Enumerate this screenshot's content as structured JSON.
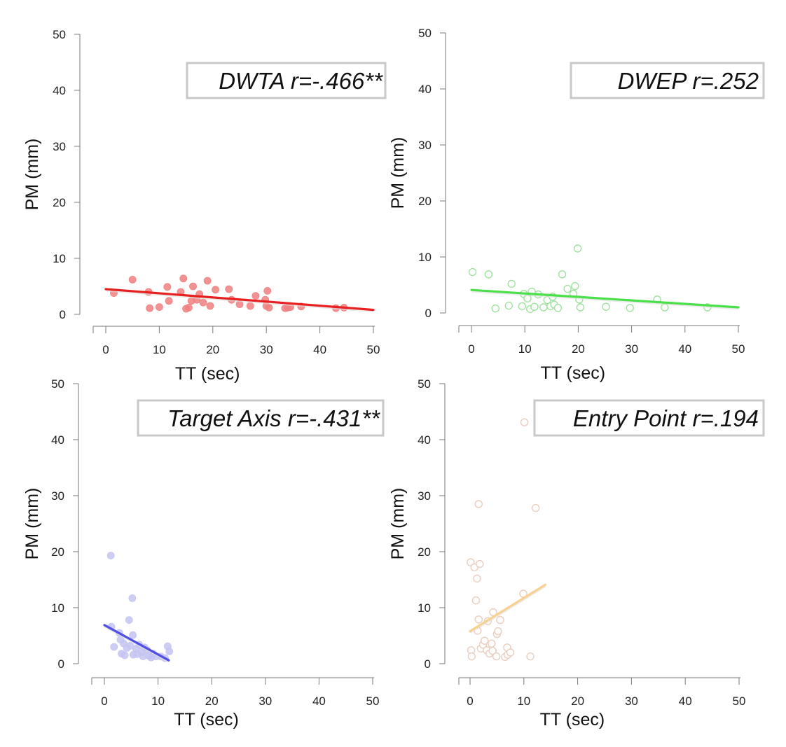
{
  "chart_data": [
    {
      "type": "scatter",
      "title": "DWTA r=-.466**",
      "xlabel": "TT (sec)",
      "ylabel": "PM (mm)",
      "xlim": [
        -2,
        50
      ],
      "ylim": [
        0,
        50
      ],
      "xticks": [
        0,
        10,
        20,
        30,
        40,
        50
      ],
      "yticks": [
        0,
        10,
        20,
        30,
        40,
        50
      ],
      "point_color": "#f08080",
      "point_style": "filled",
      "line_color": "#e82020",
      "fit_line": {
        "x": [
          0,
          50
        ],
        "y": [
          4.5,
          0.8
        ]
      },
      "points": [
        {
          "x": 1.5,
          "y": 3.8
        },
        {
          "x": 5,
          "y": 6.2
        },
        {
          "x": 8,
          "y": 4
        },
        {
          "x": 8.2,
          "y": 1.1
        },
        {
          "x": 10,
          "y": 1.3
        },
        {
          "x": 11.5,
          "y": 4.9
        },
        {
          "x": 11.8,
          "y": 2.4
        },
        {
          "x": 14,
          "y": 4
        },
        {
          "x": 14.5,
          "y": 6.4
        },
        {
          "x": 15,
          "y": 1
        },
        {
          "x": 15.5,
          "y": 1.2
        },
        {
          "x": 16,
          "y": 2.4
        },
        {
          "x": 16.3,
          "y": 5
        },
        {
          "x": 17,
          "y": 2.6
        },
        {
          "x": 17.5,
          "y": 3.6
        },
        {
          "x": 18.2,
          "y": 2.1
        },
        {
          "x": 19,
          "y": 6
        },
        {
          "x": 19.5,
          "y": 1.5
        },
        {
          "x": 20.5,
          "y": 4.4
        },
        {
          "x": 23,
          "y": 4.5
        },
        {
          "x": 23.5,
          "y": 2.6
        },
        {
          "x": 25,
          "y": 1.8
        },
        {
          "x": 27,
          "y": 1.5
        },
        {
          "x": 28,
          "y": 3.3
        },
        {
          "x": 29.8,
          "y": 2.6
        },
        {
          "x": 30.2,
          "y": 4.2
        },
        {
          "x": 30,
          "y": 1.5
        },
        {
          "x": 30.5,
          "y": 1.2
        },
        {
          "x": 33.5,
          "y": 1.1
        },
        {
          "x": 34,
          "y": 1.2
        },
        {
          "x": 34.5,
          "y": 1.3
        },
        {
          "x": 36.5,
          "y": 1.4
        },
        {
          "x": 43,
          "y": 1.1
        },
        {
          "x": 44.5,
          "y": 1.2
        }
      ]
    },
    {
      "type": "scatter",
      "title": "DWEP r=.252",
      "xlabel": "TT (sec)",
      "ylabel": "PM (mm)",
      "xlim": [
        -2,
        50
      ],
      "ylim": [
        0,
        50
      ],
      "xticks": [
        0,
        10,
        20,
        30,
        40,
        50
      ],
      "yticks": [
        0,
        10,
        20,
        30,
        40,
        50
      ],
      "point_color": "#9ee29e",
      "point_style": "outlined",
      "line_color": "#49e049",
      "fit_line": {
        "x": [
          0,
          50
        ],
        "y": [
          4.1,
          1
        ]
      },
      "points": [
        {
          "x": 0.2,
          "y": 7.3
        },
        {
          "x": 3.2,
          "y": 6.9
        },
        {
          "x": 4.5,
          "y": 0.8
        },
        {
          "x": 7,
          "y": 1.3
        },
        {
          "x": 7.5,
          "y": 5.2
        },
        {
          "x": 9.5,
          "y": 1.2
        },
        {
          "x": 9.8,
          "y": 3.4
        },
        {
          "x": 10.5,
          "y": 2.6
        },
        {
          "x": 11,
          "y": 0.7
        },
        {
          "x": 11.3,
          "y": 3.8
        },
        {
          "x": 11.8,
          "y": 1.1
        },
        {
          "x": 12.5,
          "y": 3.3
        },
        {
          "x": 13.5,
          "y": 1
        },
        {
          "x": 14.2,
          "y": 2.3
        },
        {
          "x": 14.8,
          "y": 1.2
        },
        {
          "x": 15.2,
          "y": 2.9
        },
        {
          "x": 15.5,
          "y": 1.5
        },
        {
          "x": 16.2,
          "y": 0.9
        },
        {
          "x": 17,
          "y": 6.9
        },
        {
          "x": 18,
          "y": 4.3
        },
        {
          "x": 19.1,
          "y": 3.4
        },
        {
          "x": 19.4,
          "y": 4.8
        },
        {
          "x": 19.9,
          "y": 11.5
        },
        {
          "x": 20.2,
          "y": 2.4
        },
        {
          "x": 20.4,
          "y": 1
        },
        {
          "x": 25.2,
          "y": 1.1
        },
        {
          "x": 29.7,
          "y": 0.9
        },
        {
          "x": 34.8,
          "y": 2.4
        },
        {
          "x": 36.2,
          "y": 1
        },
        {
          "x": 44.2,
          "y": 1
        }
      ]
    },
    {
      "type": "scatter",
      "title": "Target Axis r=-.431**",
      "xlabel": "TT (sec)",
      "ylabel": "PM (mm)",
      "xlim": [
        -2,
        50
      ],
      "ylim": [
        0,
        50
      ],
      "xticks": [
        0,
        10,
        20,
        30,
        40,
        50
      ],
      "yticks": [
        0,
        10,
        20,
        30,
        40,
        50
      ],
      "point_color": "#c4c4f2",
      "point_style": "filled",
      "line_color": "#5050e6",
      "fit_line": {
        "x": [
          0,
          12
        ],
        "y": [
          6.9,
          0.6
        ]
      },
      "points": [
        {
          "x": 1.2,
          "y": 19.3
        },
        {
          "x": 1.3,
          "y": 6.6
        },
        {
          "x": 1.8,
          "y": 3
        },
        {
          "x": 2.8,
          "y": 5.5
        },
        {
          "x": 3,
          "y": 4.3
        },
        {
          "x": 3.2,
          "y": 1.8
        },
        {
          "x": 3.6,
          "y": 3.6
        },
        {
          "x": 3.8,
          "y": 1.5
        },
        {
          "x": 4.2,
          "y": 2.8
        },
        {
          "x": 4.6,
          "y": 7.8
        },
        {
          "x": 4.8,
          "y": 3.2
        },
        {
          "x": 5.2,
          "y": 11.7
        },
        {
          "x": 5.3,
          "y": 5.1
        },
        {
          "x": 5.4,
          "y": 1.6
        },
        {
          "x": 5.9,
          "y": 2.7
        },
        {
          "x": 6.1,
          "y": 1.7
        },
        {
          "x": 6.5,
          "y": 3.4
        },
        {
          "x": 6.9,
          "y": 2.1
        },
        {
          "x": 7.2,
          "y": 1.3
        },
        {
          "x": 7.5,
          "y": 2.9
        },
        {
          "x": 8,
          "y": 2.4
        },
        {
          "x": 8.3,
          "y": 1.4
        },
        {
          "x": 8.7,
          "y": 1.1
        },
        {
          "x": 9.1,
          "y": 1.8
        },
        {
          "x": 9.6,
          "y": 1.3
        },
        {
          "x": 10.5,
          "y": 1.3
        },
        {
          "x": 11.3,
          "y": 1
        },
        {
          "x": 11.8,
          "y": 3.1
        },
        {
          "x": 12.1,
          "y": 2.2
        }
      ]
    },
    {
      "type": "scatter",
      "title": "Entry Point r=.194",
      "xlabel": "TT (sec)",
      "ylabel": "PM (mm)",
      "xlim": [
        -2,
        50
      ],
      "ylim": [
        0,
        50
      ],
      "xticks": [
        0,
        10,
        20,
        30,
        40,
        50
      ],
      "yticks": [
        0,
        10,
        20,
        30,
        40,
        50
      ],
      "point_color": "#e9cdbd",
      "point_style": "outlined",
      "line_color": "#f8d090",
      "fit_line": {
        "x": [
          0,
          14
        ],
        "y": [
          5.8,
          14.1
        ]
      },
      "points": [
        {
          "x": 0.1,
          "y": 18.1
        },
        {
          "x": 0.2,
          "y": 2.4
        },
        {
          "x": 0.3,
          "y": 1.3
        },
        {
          "x": 0.8,
          "y": 17.2
        },
        {
          "x": 1.1,
          "y": 11.3
        },
        {
          "x": 1.3,
          "y": 15.2
        },
        {
          "x": 1.4,
          "y": 5.9
        },
        {
          "x": 1.6,
          "y": 7.9
        },
        {
          "x": 1.6,
          "y": 28.5
        },
        {
          "x": 1.8,
          "y": 17.8
        },
        {
          "x": 2,
          "y": 2.7
        },
        {
          "x": 2.4,
          "y": 3.4
        },
        {
          "x": 2.7,
          "y": 4.1
        },
        {
          "x": 3.1,
          "y": 2.4
        },
        {
          "x": 3.3,
          "y": 7.6
        },
        {
          "x": 3.6,
          "y": 1.8
        },
        {
          "x": 4,
          "y": 3.6
        },
        {
          "x": 4.2,
          "y": 2.3
        },
        {
          "x": 4.3,
          "y": 9.2
        },
        {
          "x": 4.9,
          "y": 1.3
        },
        {
          "x": 5,
          "y": 5.3
        },
        {
          "x": 5.2,
          "y": 5.8
        },
        {
          "x": 5.6,
          "y": 7.8
        },
        {
          "x": 6.5,
          "y": 1.2
        },
        {
          "x": 6.9,
          "y": 2.9
        },
        {
          "x": 7,
          "y": 1.6
        },
        {
          "x": 7.5,
          "y": 2
        },
        {
          "x": 9.9,
          "y": 12.5
        },
        {
          "x": 10.1,
          "y": 43.1
        },
        {
          "x": 11.2,
          "y": 1.3
        },
        {
          "x": 12.2,
          "y": 27.8
        }
      ]
    }
  ]
}
